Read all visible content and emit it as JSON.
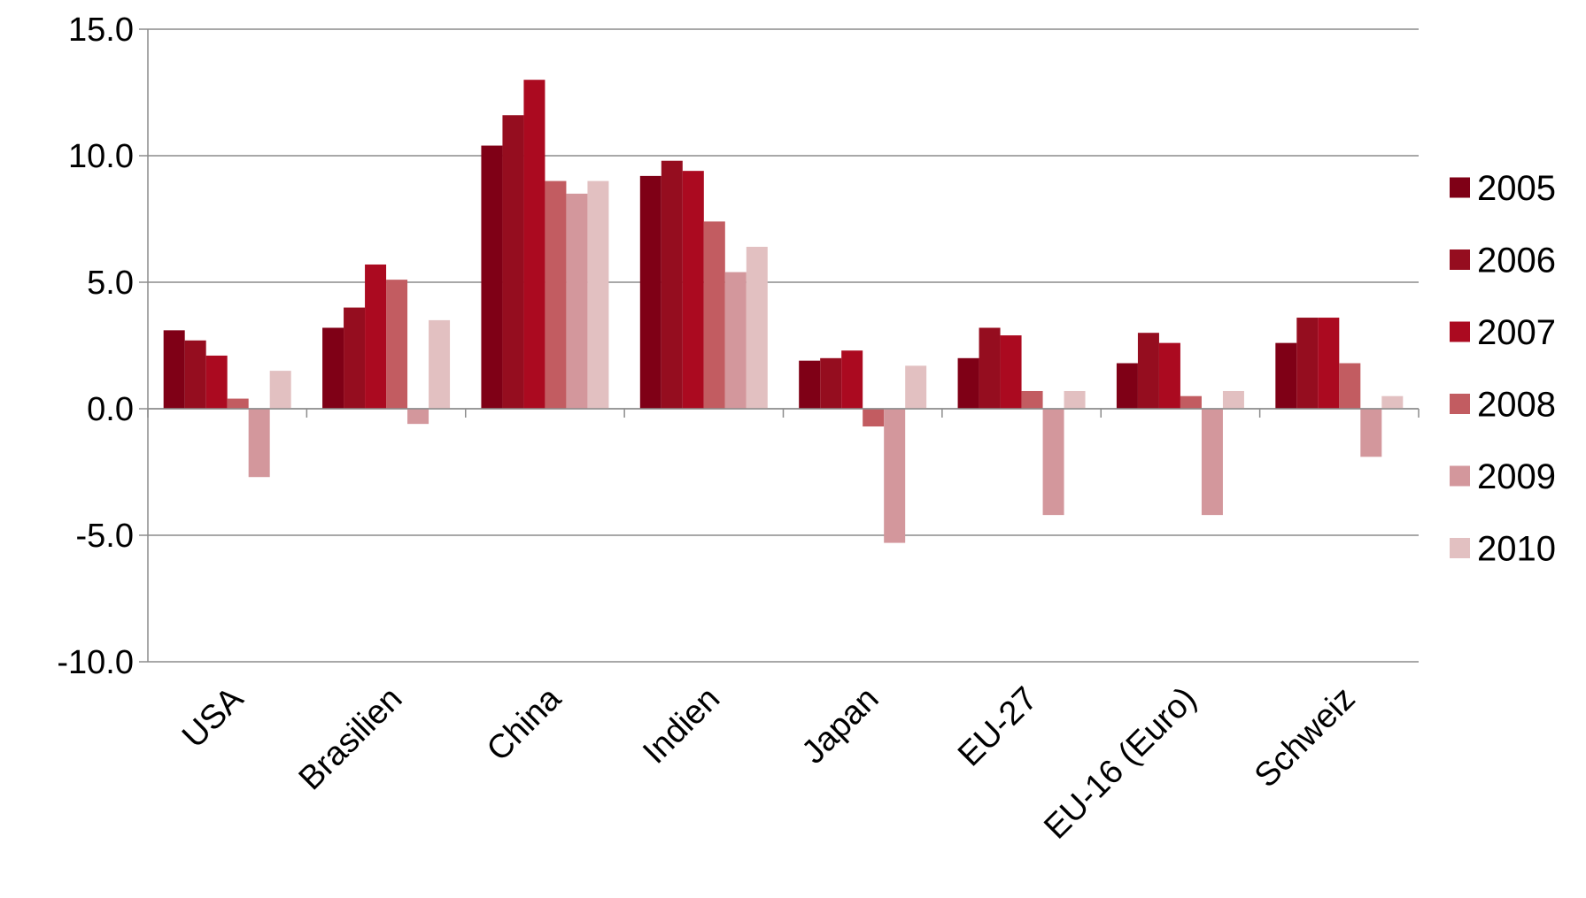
{
  "chart_data": {
    "type": "bar",
    "title": "",
    "xlabel": "",
    "ylabel": "",
    "ylim": [
      -10,
      15
    ],
    "yticks": [
      15,
      10,
      5,
      0,
      -5,
      -10
    ],
    "ytick_labels": [
      "15.0",
      "10.0",
      "5.0",
      "0.0",
      "-5.0",
      "-10.0"
    ],
    "grid": true,
    "legend_position": "right",
    "categories": [
      "USA",
      "Brasilien",
      "China",
      "Indien",
      "Japan",
      "EU-27",
      "EU-16 (Euro)",
      "Schweiz"
    ],
    "series": [
      {
        "name": "2005",
        "color": "#7f0016",
        "values": [
          3.1,
          3.2,
          10.4,
          9.2,
          1.9,
          2.0,
          1.8,
          2.6
        ]
      },
      {
        "name": "2006",
        "color": "#950d1f",
        "values": [
          2.7,
          4.0,
          11.6,
          9.8,
          2.0,
          3.2,
          3.0,
          3.6
        ]
      },
      {
        "name": "2007",
        "color": "#ab0a20",
        "values": [
          2.1,
          5.7,
          13.0,
          9.4,
          2.3,
          2.9,
          2.6,
          3.6
        ]
      },
      {
        "name": "2008",
        "color": "#c25c61",
        "values": [
          0.4,
          5.1,
          9.0,
          7.4,
          -0.7,
          0.7,
          0.5,
          1.8
        ]
      },
      {
        "name": "2009",
        "color": "#d3979c",
        "values": [
          -2.7,
          -0.6,
          8.5,
          5.4,
          -5.3,
          -4.2,
          -4.2,
          -1.9
        ]
      },
      {
        "name": "2010",
        "color": "#e2c0c1",
        "values": [
          1.5,
          3.5,
          9.0,
          6.4,
          1.7,
          0.7,
          0.7,
          0.5
        ]
      }
    ]
  }
}
